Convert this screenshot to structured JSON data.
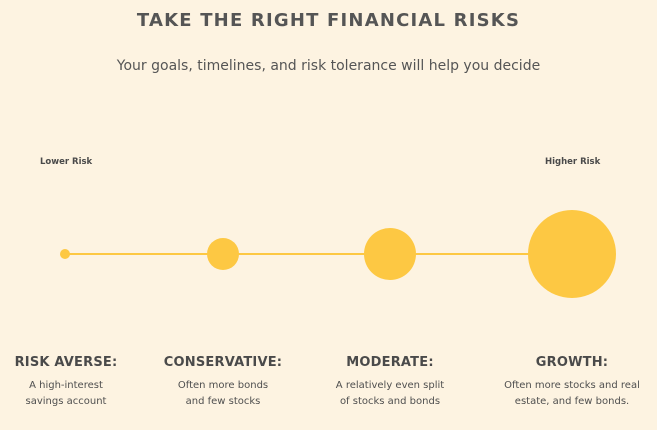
{
  "header": {
    "title": "TAKE THE RIGHT FINANCIAL RISKS",
    "subtitle": "Your goals, timelines, and risk tolerance will help you decide"
  },
  "scale": {
    "lower_label": "Lower Risk",
    "higher_label": "Higher Risk"
  },
  "colors": {
    "background": "#fdf3e1",
    "accent": "#fdc843",
    "text": "#4f4f4f"
  },
  "levels": [
    {
      "title": "RISK AVERSE:",
      "desc_line1": "A high-interest",
      "desc_line2": "savings account"
    },
    {
      "title": "CONSERVATIVE:",
      "desc_line1": "Often more bonds",
      "desc_line2": "and few stocks"
    },
    {
      "title": "MODERATE:",
      "desc_line1": "A relatively even split",
      "desc_line2": "of stocks and bonds"
    },
    {
      "title": "GROWTH:",
      "desc_line1": "Often more stocks and real",
      "desc_line2": "estate, and few bonds."
    }
  ]
}
